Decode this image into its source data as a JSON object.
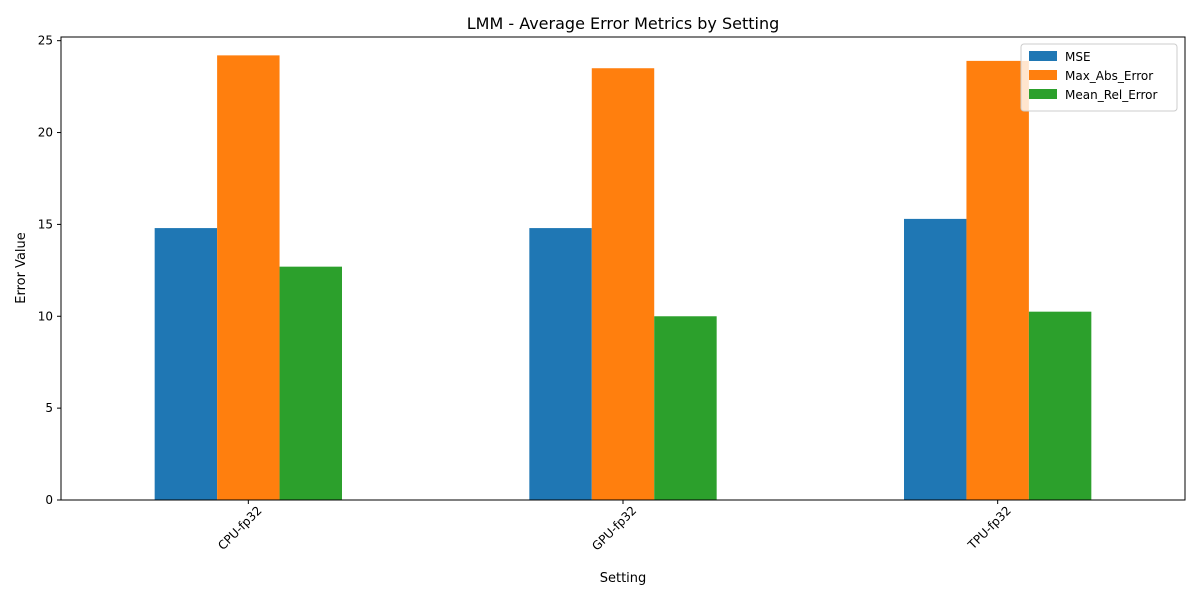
{
  "chart_data": {
    "type": "bar",
    "title": "LMM - Average Error Metrics by Setting",
    "xlabel": "Setting",
    "ylabel": "Error Value",
    "categories": [
      "CPU-fp32",
      "GPU-fp32",
      "TPU-fp32"
    ],
    "series": [
      {
        "name": "MSE",
        "values": [
          14.8,
          14.8,
          15.3
        ],
        "color": "#1f77b4"
      },
      {
        "name": "Max_Abs_Error",
        "values": [
          24.2,
          23.5,
          23.9
        ],
        "color": "#ff7f0e"
      },
      {
        "name": "Mean_Rel_Error",
        "values": [
          12.7,
          10.0,
          10.25
        ],
        "color": "#2ca02c"
      }
    ],
    "ylim": [
      0,
      25.2
    ],
    "yticks": [
      0,
      5,
      10,
      15,
      20,
      25
    ],
    "grid": false,
    "legend_position": "top-right"
  }
}
